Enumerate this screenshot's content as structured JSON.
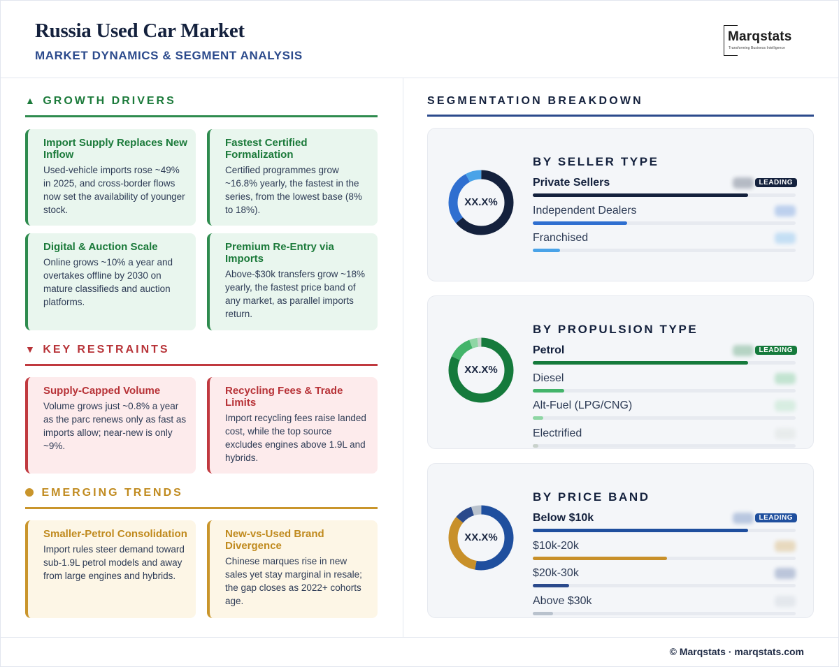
{
  "header": {
    "title": "Russia Used Car Market",
    "subtitle": "MARKET DYNAMICS & SEGMENT ANALYSIS",
    "logo_text": "Marqstats",
    "logo_tagline": "Transforming Business Intelligence"
  },
  "drivers": {
    "heading": "GROWTH DRIVERS",
    "icon": "triangle-up-icon",
    "color": "#1b7a3a",
    "cards": [
      {
        "title": "Import Supply Replaces New Inflow",
        "body": "Used-vehicle imports rose ~49% in 2025, and cross-border flows now set the availability of younger stock."
      },
      {
        "title": "Fastest Certified Formalization",
        "body": "Certified programmes grow ~16.8% yearly, the fastest in the series, from the lowest base (8% to 18%)."
      },
      {
        "title": "Digital & Auction Scale",
        "body": "Online grows ~10% a year and overtakes offline by 2030 on mature classifieds and auction platforms."
      },
      {
        "title": "Premium Re-Entry via Imports",
        "body": "Above-$30k transfers grow ~18% yearly, the fastest price band of any market, as parallel imports return."
      }
    ]
  },
  "restraints": {
    "heading": "KEY RESTRAINTS",
    "icon": "triangle-down-icon",
    "color": "#b73237",
    "cards": [
      {
        "title": "Supply-Capped Volume",
        "body": "Volume grows just ~0.8% a year as the parc renews only as fast as imports allow; near-new is only ~9%."
      },
      {
        "title": "Recycling Fees & Trade Limits",
        "body": "Import recycling fees raise landed cost, while the top source excludes engines above 1.9L and hybrids."
      }
    ]
  },
  "trends": {
    "heading": "EMERGING TRENDS",
    "icon": "circle-icon",
    "color": "#c08a1e",
    "cards": [
      {
        "title": "Smaller-Petrol Consolidation",
        "body": "Import rules steer demand toward sub-1.9L petrol models and away from large engines and hybrids."
      },
      {
        "title": "New-vs-Used Brand Divergence",
        "body": "Chinese marques rise in new sales yet stay marginal in resale; the gap closes as 2022+ cohorts age."
      }
    ]
  },
  "segmentation": {
    "heading": "SEGMENTATION BREAKDOWN",
    "leading_label": "LEADING",
    "donut_label": "XX.X%"
  },
  "chart_data": [
    {
      "type": "pie",
      "title": "BY SELLER TYPE",
      "categories": [
        "Private Sellers",
        "Independent Dealers",
        "Franchised"
      ],
      "values": [
        0.64,
        0.28,
        0.08
      ],
      "colors": [
        "#14213d",
        "#2f6fd0",
        "#4aa3e8"
      ],
      "leading": "Private Sellers"
    },
    {
      "type": "pie",
      "title": "BY PROPULSION TYPE",
      "categories": [
        "Petrol",
        "Diesel",
        "Alt-Fuel (LPG/CNG)",
        "Electrified"
      ],
      "values": [
        0.82,
        0.12,
        0.04,
        0.02
      ],
      "colors": [
        "#157a3c",
        "#43b46a",
        "#8ed6a4",
        "#c9d2cc"
      ],
      "leading": "Petrol"
    },
    {
      "type": "pie",
      "title": "BY PRICE BAND",
      "categories": [
        "Below $10k",
        "$10k-20k",
        "$20k-30k",
        "Above $30k"
      ],
      "values": [
        0.53,
        0.33,
        0.09,
        0.05
      ],
      "colors": [
        "#1f4f9e",
        "#c8902a",
        "#2b4a8c",
        "#b9c2cd"
      ],
      "leading": "Below $10k"
    }
  ],
  "footer": {
    "text": "© Marqstats · marqstats.com"
  }
}
